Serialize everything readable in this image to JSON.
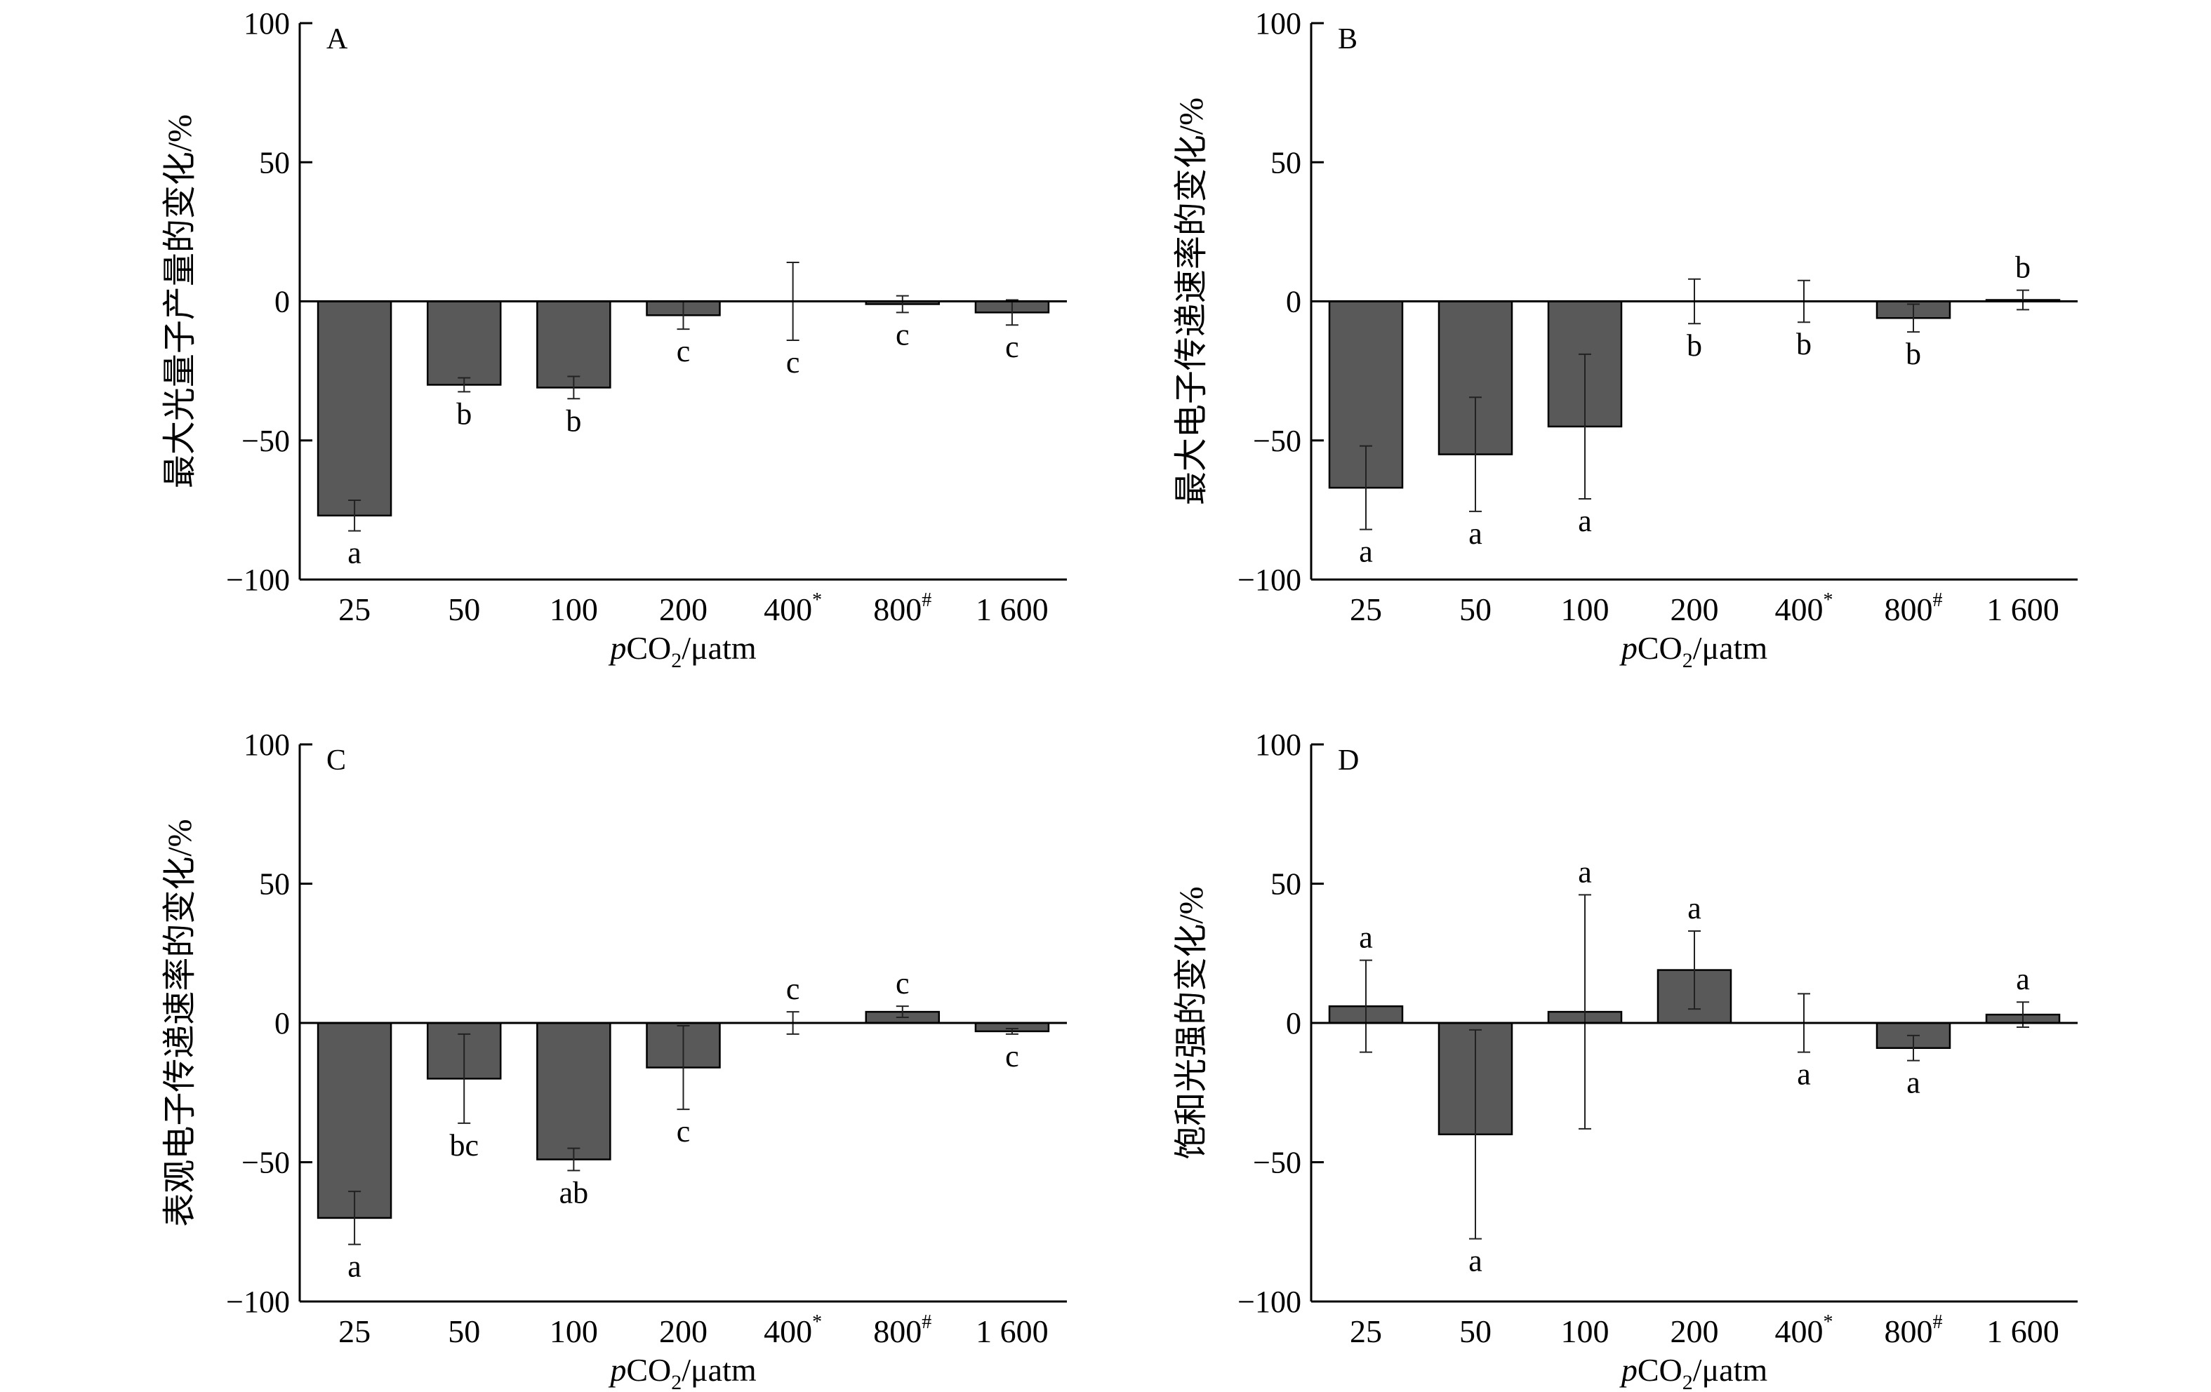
{
  "chart_data": [
    {
      "type": "bar",
      "panel_label": "A",
      "ylabel": "最大光量子产量的变化/%",
      "xlabel": "pCO₂/μatm",
      "categories": [
        "25",
        "50",
        "100",
        "200",
        "400*",
        "800#",
        "1 600"
      ],
      "values": [
        -77,
        -30,
        -31,
        -5,
        0,
        -1,
        -4
      ],
      "error": [
        5.5,
        2.5,
        4,
        5,
        14,
        3,
        4.5
      ],
      "sig_letters": [
        "a",
        "b",
        "b",
        "c",
        "c",
        "c",
        "c"
      ],
      "ylim": [
        -100,
        100
      ],
      "yticks": [
        100,
        50,
        0,
        -50,
        -100
      ],
      "ytick_labels": [
        "100",
        "50",
        "0",
        "−50",
        "−100"
      ]
    },
    {
      "type": "bar",
      "panel_label": "B",
      "ylabel": "最大电子传递速率的变化/%",
      "xlabel": "pCO₂/μatm",
      "categories": [
        "25",
        "50",
        "100",
        "200",
        "400*",
        "800#",
        "1 600"
      ],
      "values": [
        -67,
        -55,
        -45,
        0,
        0,
        -6,
        0.5
      ],
      "error": [
        15,
        20.5,
        26,
        8,
        7.5,
        5,
        3.5
      ],
      "sig_letters": [
        "a",
        "a",
        "a",
        "b",
        "b",
        "b",
        "b"
      ],
      "ylim": [
        -100,
        100
      ],
      "yticks": [
        100,
        50,
        0,
        -50,
        -100
      ],
      "ytick_labels": [
        "100",
        "50",
        "0",
        "−50",
        "−100"
      ]
    },
    {
      "type": "bar",
      "panel_label": "C",
      "ylabel": "表观电子传递速率的变化/%",
      "xlabel": "pCO₂/μatm",
      "categories": [
        "25",
        "50",
        "100",
        "200",
        "400*",
        "800#",
        "1 600"
      ],
      "values": [
        -70,
        -20,
        -49,
        -16,
        0,
        4,
        -3
      ],
      "error": [
        9.5,
        16,
        4,
        15,
        4,
        2,
        1
      ],
      "sig_letters": [
        "a",
        "bc",
        "ab",
        "c",
        "c",
        "c",
        "c"
      ],
      "ylim": [
        -100,
        100
      ],
      "yticks": [
        100,
        50,
        0,
        -50,
        -100
      ],
      "ytick_labels": [
        "100",
        "50",
        "0",
        "−50",
        "−100"
      ]
    },
    {
      "type": "bar",
      "panel_label": "D",
      "ylabel": "饱和光强的变化/%",
      "xlabel": "pCO₂/μatm",
      "categories": [
        "25",
        "50",
        "100",
        "200",
        "400*",
        "800#",
        "1 600"
      ],
      "values": [
        6,
        -40,
        4,
        19,
        0,
        -9,
        3
      ],
      "error": [
        16.5,
        37.5,
        42,
        14,
        10.5,
        4.5,
        4.5
      ],
      "sig_letters": [
        "a",
        "a",
        "a",
        "a",
        "a",
        "a",
        "a"
      ],
      "ylim": [
        -100,
        100
      ],
      "yticks": [
        100,
        50,
        0,
        -50,
        -100
      ],
      "ytick_labels": [
        "100",
        "50",
        "0",
        "−50",
        "−100"
      ]
    }
  ],
  "colors": {
    "bar_fill": "#595959",
    "bar_stroke": "#000000",
    "axis": "#000000"
  }
}
